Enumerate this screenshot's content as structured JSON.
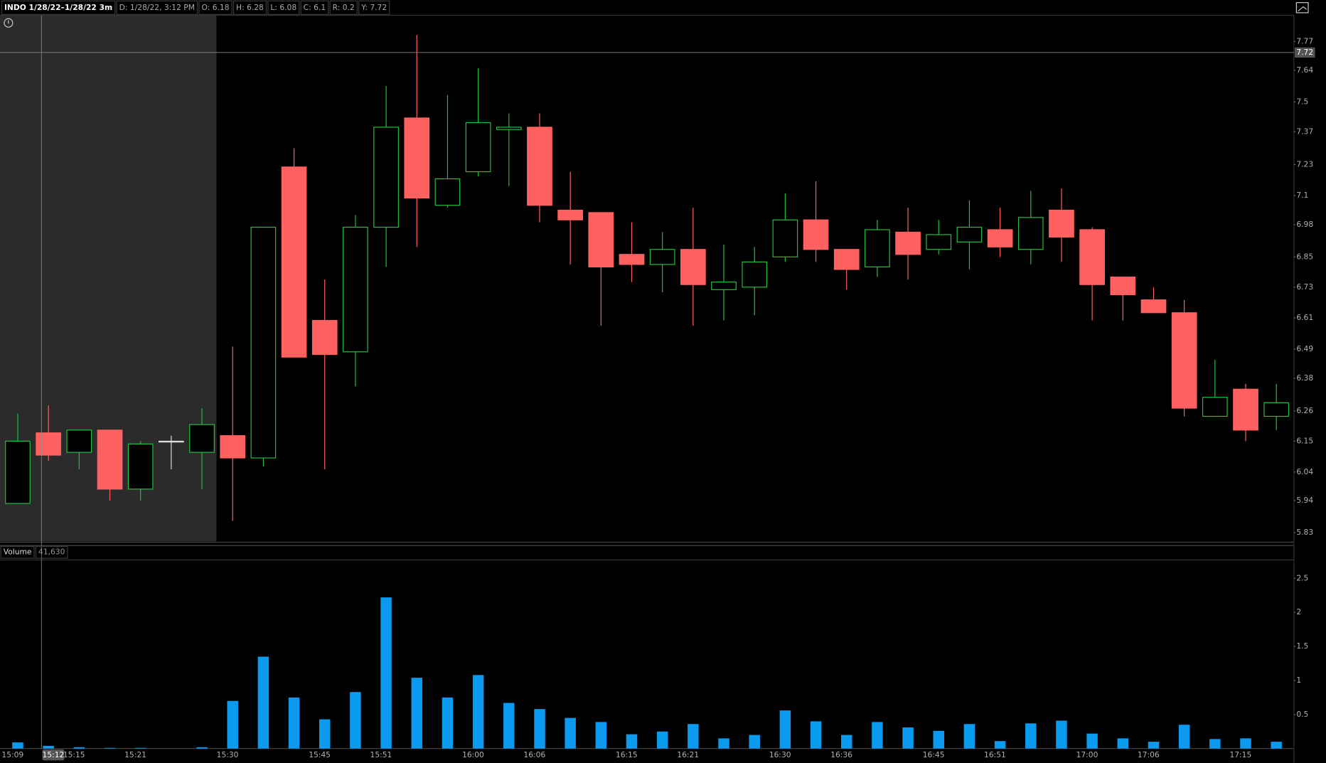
{
  "header": [
    "INDO 1/28/22–1/28/22 3m",
    "D: 1/28/22, 3:12 PM",
    "O: 6.18",
    "H: 6.28",
    "L: 6.08",
    "C: 6.1",
    "R: 0.2",
    "Y: 7.72"
  ],
  "chart_data": [
    {
      "type": "candlestick",
      "categories": [
        "15:09",
        null,
        "15:15",
        null,
        "15:21",
        null,
        null,
        "15:30",
        null,
        null,
        "15:45",
        null,
        "15:51",
        null,
        null,
        "16:00",
        null,
        "16:06",
        null,
        null,
        "16:15",
        null,
        "16:21",
        null,
        null,
        "16:30",
        null,
        "16:36",
        null,
        null,
        "16:45",
        null,
        "16:51",
        null,
        null,
        "17:00",
        null,
        "17:06",
        null,
        null,
        "17:15",
        null
      ],
      "open": [
        5.93,
        6.18,
        6.11,
        6.19,
        5.98,
        6.15,
        6.11,
        6.17,
        6.09,
        7.22,
        6.6,
        6.48,
        6.97,
        7.43,
        7.06,
        7.2,
        7.38,
        7.39,
        7.04,
        7.03,
        6.86,
        6.82,
        6.88,
        6.72,
        6.73,
        6.85,
        7.0,
        6.88,
        6.81,
        6.95,
        6.88,
        6.91,
        6.96,
        6.88,
        7.04,
        6.96,
        6.77,
        6.68,
        6.63,
        6.24,
        6.34,
        6.24
      ],
      "high": [
        6.25,
        6.28,
        6.19,
        6.19,
        6.15,
        6.17,
        6.27,
        6.5,
        6.97,
        7.3,
        6.76,
        7.02,
        7.57,
        7.8,
        7.53,
        7.65,
        7.45,
        7.45,
        7.2,
        7.03,
        6.99,
        6.95,
        7.05,
        6.9,
        6.89,
        7.11,
        7.16,
        6.88,
        7.0,
        7.05,
        7.0,
        7.08,
        7.05,
        7.12,
        7.13,
        6.97,
        6.77,
        6.73,
        6.68,
        6.45,
        6.36,
        6.36
      ],
      "low": [
        5.93,
        6.08,
        6.05,
        5.94,
        5.94,
        6.05,
        5.98,
        5.87,
        6.06,
        6.46,
        6.05,
        6.35,
        6.81,
        6.89,
        7.05,
        7.18,
        7.14,
        6.99,
        6.82,
        6.58,
        6.75,
        6.71,
        6.58,
        6.6,
        6.62,
        6.83,
        6.83,
        6.72,
        6.77,
        6.76,
        6.86,
        6.8,
        6.85,
        6.82,
        6.83,
        6.6,
        6.6,
        6.63,
        6.24,
        6.24,
        6.15,
        6.19
      ],
      "close": [
        6.15,
        6.1,
        6.19,
        5.98,
        6.14,
        6.15,
        6.21,
        6.09,
        6.97,
        6.46,
        6.47,
        6.97,
        7.39,
        7.09,
        7.17,
        7.41,
        7.39,
        7.06,
        7.0,
        6.81,
        6.82,
        6.88,
        6.74,
        6.75,
        6.83,
        7.0,
        6.88,
        6.8,
        6.96,
        6.86,
        6.94,
        6.97,
        6.89,
        7.01,
        6.93,
        6.74,
        6.7,
        6.63,
        6.27,
        6.31,
        6.19,
        6.29
      ],
      "up_color": "#22c03c",
      "down_color": "#ff6161",
      "flat_color": "#dddddd",
      "log_scale": true,
      "ylim": [
        5.8,
        7.89
      ],
      "yticks": [
        7.77,
        7.64,
        7.5,
        7.37,
        7.23,
        7.1,
        6.98,
        6.85,
        6.73,
        6.61,
        6.49,
        6.38,
        6.26,
        6.15,
        6.04,
        5.94,
        5.83
      ],
      "crosshair": {
        "x_label": "15:12",
        "price": 7.72
      }
    },
    {
      "type": "bar",
      "title": "Volume",
      "subtitle": "41,630",
      "color": "#0a9bf0",
      "values": [
        0.09,
        0.04,
        0.02,
        0.01,
        0.01,
        0,
        0.02,
        0.7,
        1.35,
        0.75,
        0.43,
        0.83,
        2.22,
        1.04,
        0.75,
        1.08,
        0.67,
        0.58,
        0.45,
        0.39,
        0.21,
        0.25,
        0.36,
        0.15,
        0.2,
        0.56,
        0.4,
        0.2,
        0.39,
        0.31,
        0.26,
        0.36,
        0.11,
        0.37,
        0.41,
        0.22,
        0.15,
        0.1,
        0.35,
        0.14,
        0.15,
        0.1
      ],
      "ylim": [
        0,
        2.77
      ],
      "yticks": [
        0.5,
        1,
        1.5,
        2,
        2.5
      ]
    }
  ]
}
